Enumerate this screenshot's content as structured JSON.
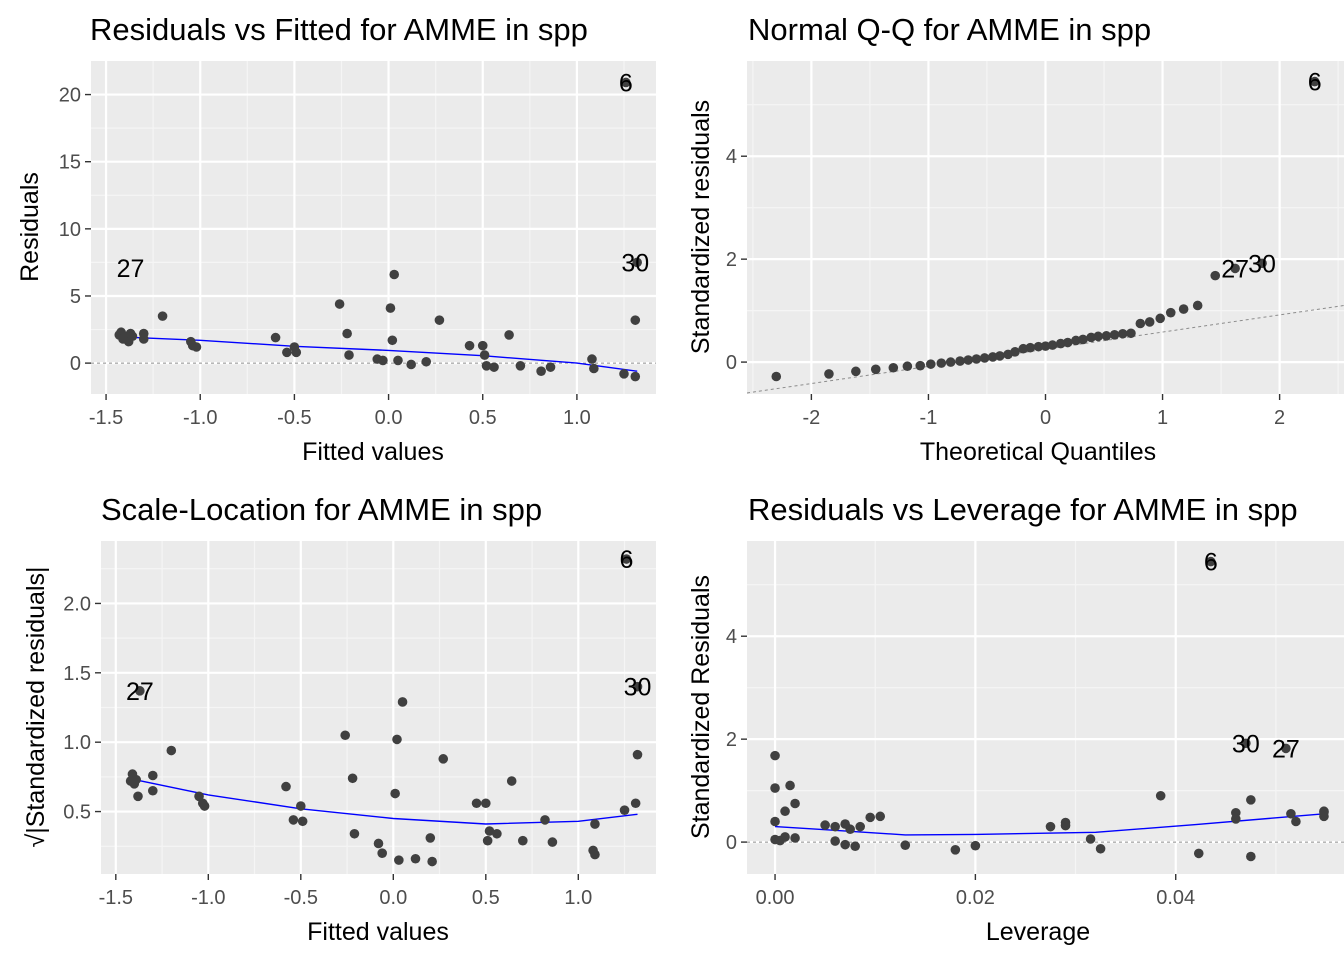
{
  "colors": {
    "panel_bg": "#ebebeb",
    "grid_major": "#ffffff",
    "grid_minor": "#f5f5f5",
    "points": "#404040",
    "smooth_line": "#0000ff",
    "reference_line": "#8c8c8c",
    "tick_text": "#4d4d4d"
  },
  "chart_data": [
    {
      "type": "scatter",
      "title": "Residuals vs Fitted for AMME in spp",
      "xlabel": "Fitted values",
      "ylabel": "Residuals",
      "xlim": [
        -1.58,
        1.42
      ],
      "ylim": [
        -2.3,
        22.5
      ],
      "xticks": [
        -1.5,
        -1.0,
        -0.5,
        0.0,
        0.5,
        1.0
      ],
      "xtick_labels": [
        "-1.5",
        "-1.0",
        "-0.5",
        "0.0",
        "0.5",
        "1.0"
      ],
      "yticks": [
        0,
        5,
        10,
        15,
        20
      ],
      "ytick_labels": [
        "0",
        "5",
        "10",
        "15",
        "20"
      ],
      "grid": true,
      "reference_line": {
        "type": "horizontal",
        "y": 0
      },
      "x": [
        -1.43,
        -1.42,
        -1.41,
        -1.4,
        -1.38,
        -1.37,
        -1.36,
        -1.3,
        -1.3,
        -1.2,
        -1.05,
        -1.04,
        -1.02,
        -0.6,
        -0.54,
        -0.5,
        -0.49,
        -0.26,
        -0.22,
        -0.21,
        -0.06,
        -0.03,
        0.01,
        0.02,
        0.03,
        0.05,
        0.12,
        0.2,
        0.27,
        0.43,
        0.5,
        0.51,
        0.52,
        0.56,
        0.64,
        0.7,
        0.81,
        0.86,
        1.08,
        1.09,
        1.25,
        1.26,
        1.31,
        1.31,
        1.32
      ],
      "y": [
        2.1,
        2.3,
        1.8,
        2.0,
        1.6,
        2.2,
        2.0,
        2.2,
        1.8,
        3.5,
        1.6,
        1.3,
        1.2,
        1.9,
        0.8,
        1.2,
        0.8,
        4.4,
        2.2,
        0.6,
        0.3,
        0.2,
        4.1,
        1.7,
        6.6,
        0.2,
        -0.1,
        0.1,
        3.2,
        1.3,
        1.3,
        0.6,
        -0.2,
        -0.3,
        2.1,
        -0.2,
        -0.6,
        -0.3,
        0.3,
        -0.4,
        -0.8,
        20.9,
        -1.0,
        3.2,
        7.5
      ],
      "smooth": {
        "x": [
          -1.42,
          -1.0,
          -0.5,
          0.0,
          0.5,
          1.0,
          1.32
        ],
        "y": [
          1.95,
          1.7,
          1.25,
          0.95,
          0.55,
          0.0,
          -0.6
        ]
      },
      "point_labels": [
        {
          "text": "6",
          "x": 1.26,
          "y": 20.9
        },
        {
          "text": "30",
          "x": 1.31,
          "y": 7.5
        },
        {
          "text": "27",
          "x": -1.37,
          "y": 7.1
        }
      ]
    },
    {
      "type": "scatter",
      "title": "Normal Q-Q for AMME in spp",
      "xlabel": "Theoretical Quantiles",
      "ylabel": "Standardized residuals",
      "xlim": [
        -2.55,
        2.55
      ],
      "ylim": [
        -0.62,
        5.85
      ],
      "xticks": [
        -2,
        -1,
        0,
        1,
        2
      ],
      "xtick_labels": [
        "-2",
        "-1",
        "0",
        "1",
        "2"
      ],
      "yticks": [
        0,
        2,
        4
      ],
      "ytick_labels": [
        "0",
        "2",
        "4"
      ],
      "grid": true,
      "reference_line": {
        "type": "diagonal",
        "x": [
          -2.55,
          2.55
        ],
        "y": [
          -0.6,
          1.1
        ]
      },
      "x": [
        -2.3,
        -1.85,
        -1.62,
        -1.45,
        -1.3,
        -1.18,
        -1.07,
        -0.98,
        -0.89,
        -0.81,
        -0.73,
        -0.66,
        -0.59,
        -0.52,
        -0.45,
        -0.39,
        -0.32,
        -0.26,
        -0.19,
        -0.13,
        -0.06,
        0.0,
        0.06,
        0.13,
        0.19,
        0.26,
        0.32,
        0.39,
        0.45,
        0.52,
        0.59,
        0.66,
        0.73,
        0.81,
        0.89,
        0.98,
        1.07,
        1.18,
        1.3,
        1.45,
        1.62,
        1.85,
        2.3
      ],
      "y": [
        -0.28,
        -0.23,
        -0.18,
        -0.14,
        -0.11,
        -0.08,
        -0.07,
        -0.04,
        -0.02,
        0.0,
        0.02,
        0.04,
        0.06,
        0.08,
        0.1,
        0.12,
        0.15,
        0.2,
        0.26,
        0.28,
        0.3,
        0.31,
        0.33,
        0.36,
        0.38,
        0.42,
        0.44,
        0.48,
        0.5,
        0.51,
        0.53,
        0.55,
        0.56,
        0.75,
        0.78,
        0.85,
        0.96,
        1.03,
        1.1,
        1.68,
        1.82,
        1.92,
        5.45
      ],
      "point_labels": [
        {
          "text": "6",
          "x": 2.3,
          "y": 5.45
        },
        {
          "text": "30",
          "x": 1.85,
          "y": 1.92
        },
        {
          "text": "27",
          "x": 1.62,
          "y": 1.82
        }
      ]
    },
    {
      "type": "scatter",
      "title": "Scale-Location for AMME in spp",
      "xlabel": "Fitted values",
      "ylabel": "√|Standardized residuals|",
      "xlim": [
        -1.58,
        1.42
      ],
      "ylim": [
        0.05,
        2.45
      ],
      "xticks": [
        -1.5,
        -1.0,
        -0.5,
        0.0,
        0.5,
        1.0
      ],
      "xtick_labels": [
        "-1.5",
        "-1.0",
        "-0.5",
        "0.0",
        "0.5",
        "1.0"
      ],
      "yticks": [
        0.5,
        1.0,
        1.5,
        2.0
      ],
      "ytick_labels": [
        "0.5",
        "1.0",
        "1.5",
        "2.0"
      ],
      "grid": true,
      "x": [
        -1.42,
        -1.41,
        -1.4,
        -1.39,
        -1.38,
        -1.37,
        -1.3,
        -1.3,
        -1.2,
        -1.05,
        -1.03,
        -1.02,
        -0.58,
        -0.54,
        -0.5,
        -0.49,
        -0.26,
        -0.22,
        -0.21,
        -0.08,
        -0.06,
        0.01,
        0.02,
        0.03,
        0.05,
        0.12,
        0.2,
        0.21,
        0.27,
        0.45,
        0.5,
        0.51,
        0.52,
        0.56,
        0.64,
        0.7,
        0.82,
        0.86,
        1.08,
        1.09,
        1.09,
        1.25,
        1.26,
        1.31,
        1.32,
        1.32
      ],
      "y": [
        0.72,
        0.77,
        0.7,
        0.73,
        0.61,
        1.37,
        0.76,
        0.65,
        0.94,
        0.61,
        0.56,
        0.54,
        0.68,
        0.44,
        0.54,
        0.43,
        1.05,
        0.74,
        0.34,
        0.27,
        0.2,
        0.63,
        1.02,
        0.15,
        1.29,
        0.16,
        0.31,
        0.14,
        0.88,
        0.56,
        0.56,
        0.29,
        0.36,
        0.34,
        0.72,
        0.29,
        0.44,
        0.28,
        0.22,
        0.19,
        0.41,
        0.51,
        2.32,
        0.56,
        0.91,
        1.4
      ],
      "smooth": {
        "x": [
          -1.4,
          -1.0,
          -0.5,
          0.0,
          0.5,
          1.0,
          1.32
        ],
        "y": [
          0.73,
          0.62,
          0.52,
          0.45,
          0.41,
          0.43,
          0.48
        ]
      },
      "point_labels": [
        {
          "text": "6",
          "x": 1.26,
          "y": 2.32
        },
        {
          "text": "30",
          "x": 1.32,
          "y": 1.4
        },
        {
          "text": "27",
          "x": -1.37,
          "y": 1.37
        }
      ]
    },
    {
      "type": "scatter",
      "title": "Residuals vs Leverage for AMME in spp",
      "xlabel": "Leverage",
      "ylabel": "Standardized Residuals",
      "xlim": [
        -0.0028,
        0.0568
      ],
      "ylim": [
        -0.62,
        5.85
      ],
      "xticks": [
        0.0,
        0.02,
        0.04
      ],
      "xtick_labels": [
        "0.00",
        "0.02",
        "0.04"
      ],
      "yticks": [
        0,
        2,
        4
      ],
      "ytick_labels": [
        "0",
        "2",
        "4"
      ],
      "grid": true,
      "reference_line": {
        "type": "horizontal",
        "y": 0
      },
      "x": [
        0.0,
        0.0,
        0.0,
        0.0,
        0.0005,
        0.001,
        0.001,
        0.0015,
        0.002,
        0.002,
        0.005,
        0.006,
        0.006,
        0.007,
        0.007,
        0.0075,
        0.008,
        0.0085,
        0.0095,
        0.0105,
        0.013,
        0.018,
        0.02,
        0.0275,
        0.029,
        0.029,
        0.0315,
        0.0325,
        0.0385,
        0.0423,
        0.046,
        0.046,
        0.0475,
        0.0475,
        0.0515,
        0.052,
        0.0548,
        0.0548,
        0.0548,
        0.0435,
        0.047,
        0.051
      ],
      "y": [
        1.68,
        1.05,
        0.4,
        0.05,
        0.03,
        0.1,
        0.6,
        1.1,
        0.75,
        0.08,
        0.33,
        0.3,
        0.02,
        0.35,
        -0.05,
        0.25,
        -0.08,
        0.3,
        0.48,
        0.5,
        -0.06,
        -0.15,
        -0.07,
        0.3,
        0.32,
        0.38,
        0.06,
        -0.13,
        0.9,
        -0.22,
        0.57,
        0.45,
        -0.28,
        0.82,
        0.55,
        0.4,
        0.6,
        0.5,
        0.58,
        5.45,
        1.92,
        1.82
      ],
      "smooth": {
        "x": [
          0.0,
          0.005,
          0.013,
          0.02,
          0.032,
          0.042,
          0.0548
        ],
        "y": [
          0.3,
          0.24,
          0.14,
          0.15,
          0.19,
          0.34,
          0.55
        ]
      },
      "point_labels": [
        {
          "text": "6",
          "x": 0.0435,
          "y": 5.45
        },
        {
          "text": "30",
          "x": 0.047,
          "y": 1.92
        },
        {
          "text": "27",
          "x": 0.051,
          "y": 1.82
        }
      ]
    }
  ]
}
